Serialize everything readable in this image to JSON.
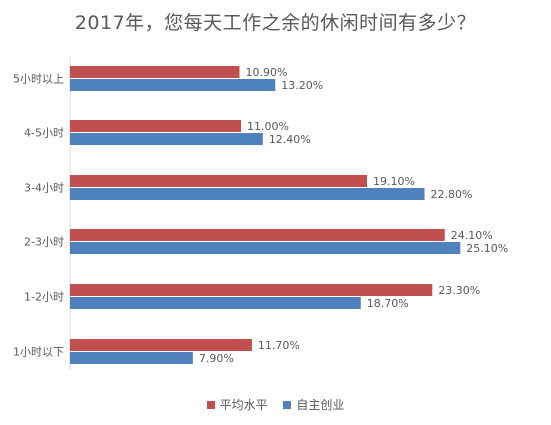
{
  "chart_data": {
    "type": "bar",
    "orientation": "horizontal",
    "title": "2017年，您每天工作之余的休闲时间有多少？",
    "categories": [
      "5小时以上",
      "4-5小时",
      "3-4小时",
      "2-3小时",
      "1-2小时",
      "1小时以下"
    ],
    "series": [
      {
        "name": "平均水平",
        "color": "#C0504D",
        "values": [
          10.9,
          11.0,
          19.1,
          24.1,
          23.3,
          11.7
        ],
        "labels": [
          "10.90%",
          "11.00%",
          "19.10%",
          "24.10%",
          "23.30%",
          "11.70%"
        ]
      },
      {
        "name": "自主创业",
        "color": "#4F81BD",
        "values": [
          13.2,
          12.4,
          22.8,
          25.1,
          18.7,
          7.9
        ],
        "labels": [
          "13.20%",
          "12.40%",
          "22.80%",
          "25.10%",
          "18.70%",
          "7.90%"
        ]
      }
    ],
    "xlim": [
      0,
      27
    ],
    "grid": false,
    "legend": "bottom-center"
  }
}
